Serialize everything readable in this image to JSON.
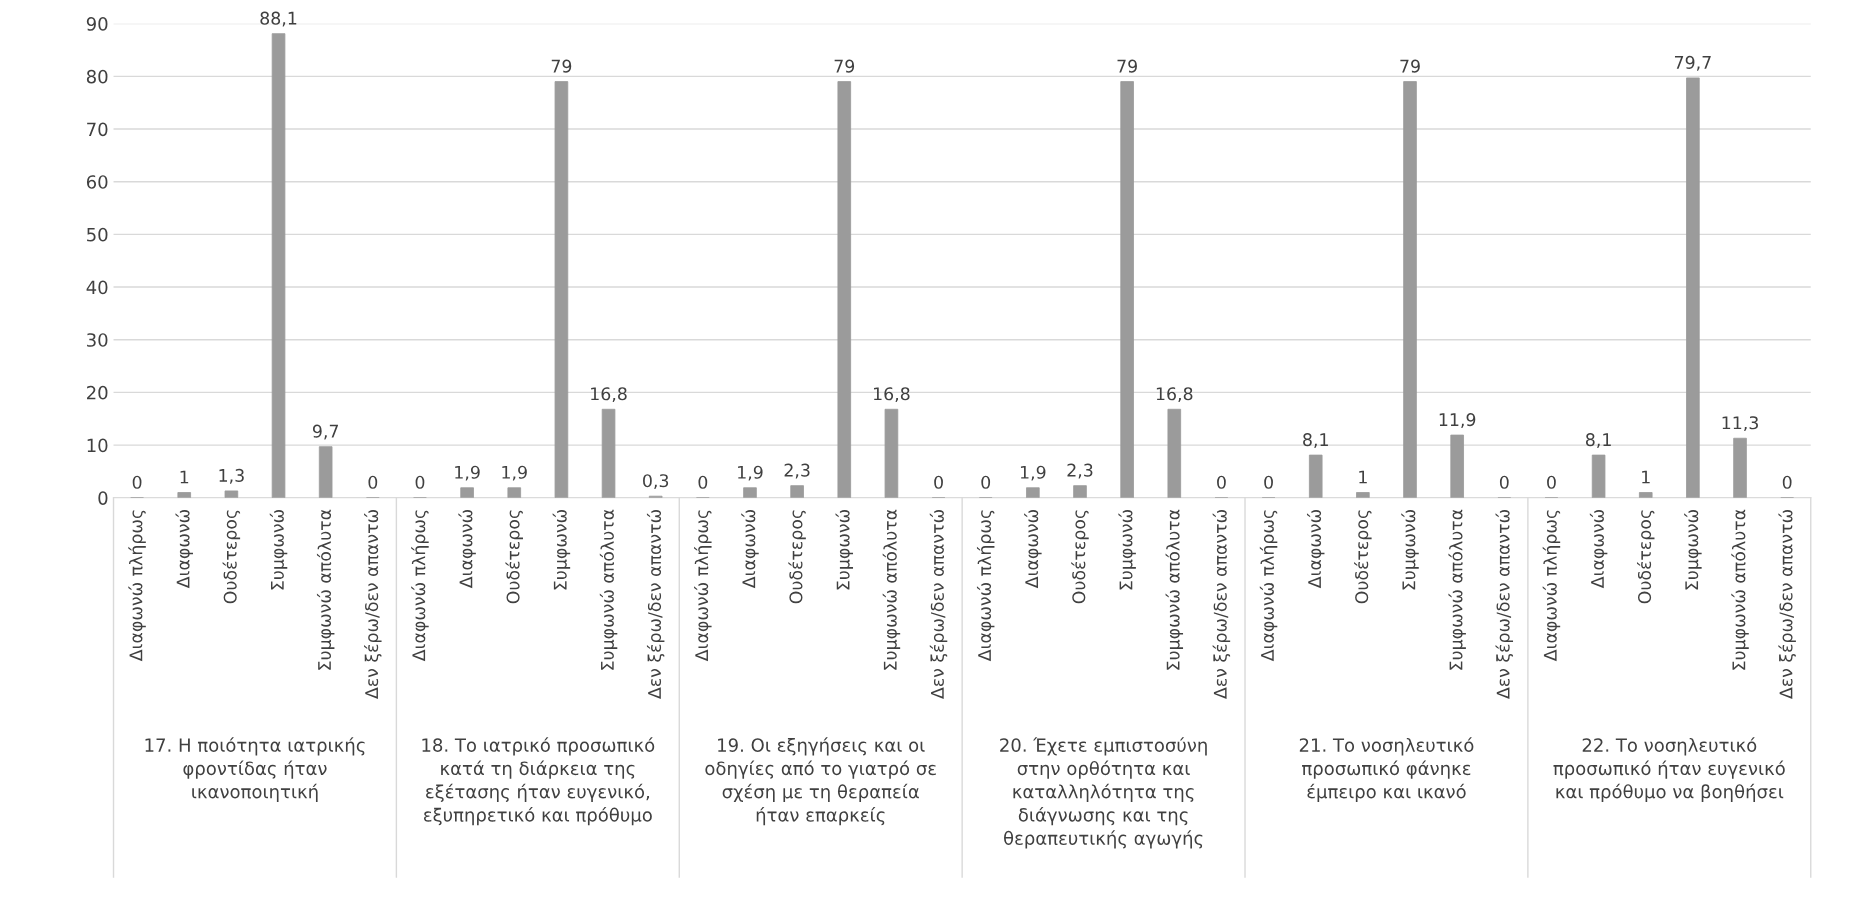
{
  "chart_data": {
    "type": "bar",
    "categories": [
      "Διαφωνώ πλήρως",
      "Διαφωνώ",
      "Ουδέτερος",
      "Συμφωνώ",
      "Συμφωνώ απόλυτα",
      "Δεν ξέρω/δεν απαντώ",
      "Διαφωνώ πλήρως",
      "Διαφωνώ",
      "Ουδέτερος",
      "Συμφωνώ",
      "Συμφωνώ απόλυτα",
      "Δεν ξέρω/δεν απαντώ",
      "Διαφωνώ πλήρως",
      "Διαφωνώ",
      "Ουδέτερος",
      "Συμφωνώ",
      "Συμφωνώ απόλυτα",
      "Δεν ξέρω/δεν απαντώ",
      "Διαφωνώ πλήρως",
      "Διαφωνώ",
      "Ουδέτερος",
      "Συμφωνώ",
      "Συμφωνώ απόλυτα",
      "Δεν ξέρω/δεν απαντώ",
      "Διαφωνώ πλήρως",
      "Διαφωνώ",
      "Ουδέτερος",
      "Συμφωνώ",
      "Συμφωνώ απόλυτα",
      "Δεν ξέρω/δεν απαντώ",
      "Διαφωνώ πλήρως",
      "Διαφωνώ",
      "Ουδέτερος",
      "Συμφωνώ",
      "Συμφωνώ απόλυτα",
      "Δεν ξέρω/δεν απαντώ"
    ],
    "values": [
      0,
      1,
      1.3,
      88.1,
      9.7,
      0,
      0,
      1.9,
      1.9,
      79,
      16.8,
      0.3,
      0,
      1.9,
      2.3,
      79,
      16.8,
      0,
      0,
      1.9,
      2.3,
      79,
      16.8,
      0,
      0,
      8.1,
      1,
      79,
      11.9,
      0,
      0,
      8.1,
      1,
      79.7,
      11.3,
      0
    ],
    "value_labels": [
      "0",
      "1",
      "1,3",
      "88,1",
      "9,7",
      "0",
      "0",
      "1,9",
      "1,9",
      "79",
      "16,8",
      "0,3",
      "0",
      "1,9",
      "2,3",
      "79",
      "16,8",
      "0",
      "0",
      "1,9",
      "2,3",
      "79",
      "16,8",
      "0",
      "0",
      "8,1",
      "1",
      "79",
      "11,9",
      "0",
      "0",
      "8,1",
      "1",
      "79,7",
      "11,3",
      "0"
    ],
    "color": "#9b9b9b",
    "ylim": [
      0,
      90
    ],
    "yticks": [
      0,
      10,
      20,
      30,
      40,
      50,
      60,
      70,
      80,
      90
    ],
    "grid": "y",
    "legend": false,
    "annotations": [
      "17. Η ποιότητα ιατρικής\nφροντίδας ήταν\nικανοποιητική",
      "18. Το ιατρικό προσωπικό\nκατά τη διάρκεια της\nεξέτασης ήταν ευγενικό,\nεξυπηρετικό και πρόθυμο",
      "19. Οι εξηγήσεις και οι\nοδηγίες από το γιατρό σε\nσχέση με τη θεραπεία\nήταν επαρκείς",
      "20. Έχετε εμπιστοσύνη\nστην ορθότητα και\nκαταλληλότητα της\nδιάγνωσης και της\nθεραπευτικής αγωγής",
      "21. Το νοσηλευτικό\nπροσωπικό φάνηκε\nέμπειρο και ικανό",
      "22. Το νοσηλευτικό\nπροσωπικό ήταν ευγενικό\nκαι πρόθυμο να βοηθήσει"
    ]
  }
}
